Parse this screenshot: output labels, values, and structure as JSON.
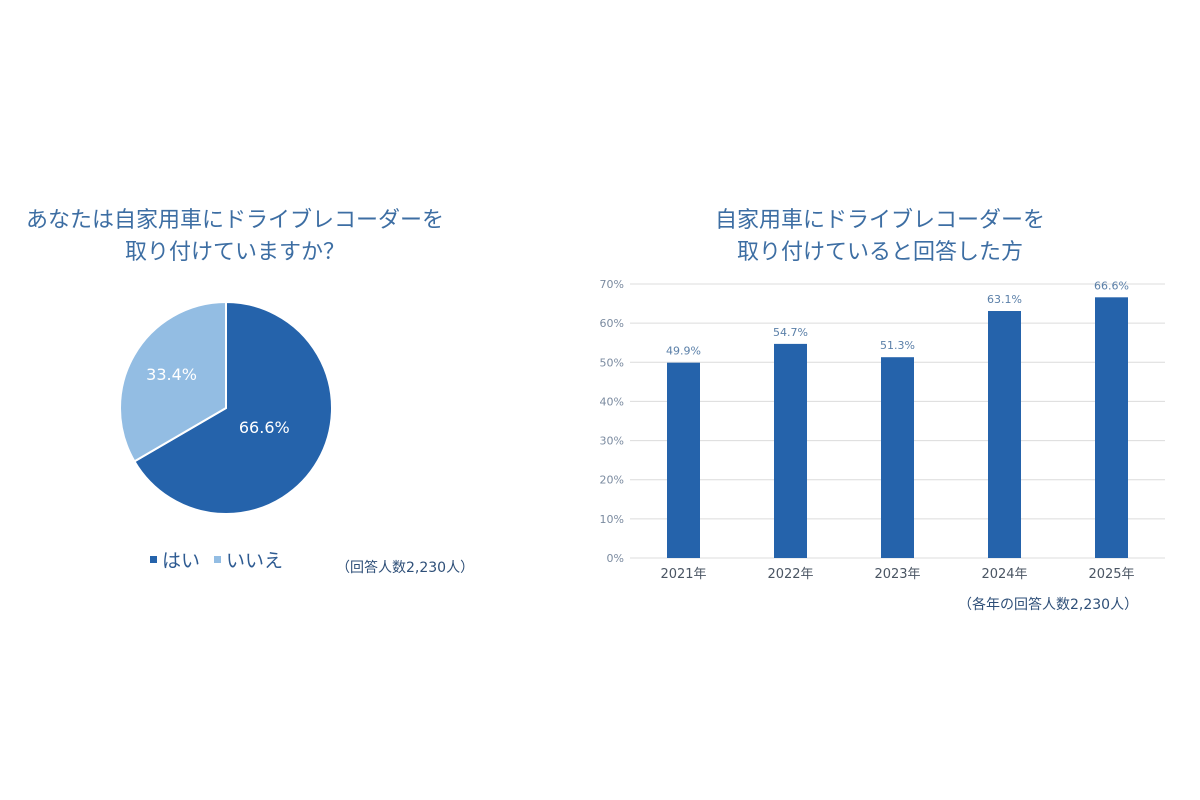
{
  "pie": {
    "title_line1": "あなたは自家用車にドライブレコーダーを",
    "title_line2": "取り付けていますか？",
    "slices": [
      {
        "label": "はい",
        "value": 66.6,
        "display": "66.6%",
        "color": "#2563ab"
      },
      {
        "label": "いいえ",
        "value": 33.4,
        "display": "33.4%",
        "color": "#93bde3"
      }
    ],
    "legend": [
      "はい",
      "いいえ"
    ],
    "note": "（回答人数2,230人）"
  },
  "bar": {
    "title_line1": "自家用車にドライブレコーダーを",
    "title_line2": "取り付けていると回答した方",
    "note": "（各年の回答人数2,230人）",
    "bar_color": "#2563ab"
  },
  "chart_data": [
    {
      "type": "pie",
      "title": "あなたは自家用車にドライブレコーダーを取り付けていますか？",
      "categories": [
        "はい",
        "いいえ"
      ],
      "values": [
        66.6,
        33.4
      ],
      "legend_position": "bottom",
      "annotation": "（回答人数2,230人）"
    },
    {
      "type": "bar",
      "title": "自家用車にドライブレコーダーを取り付けていると回答した方",
      "categories": [
        "2021年",
        "2022年",
        "2023年",
        "2024年",
        "2025年"
      ],
      "values": [
        49.9,
        54.7,
        51.3,
        63.1,
        66.6
      ],
      "value_labels": [
        "49.9%",
        "54.7%",
        "51.3%",
        "63.1%",
        "66.6%"
      ],
      "xlabel": "",
      "ylabel": "",
      "ylim": [
        0,
        70
      ],
      "yticks": [
        "0%",
        "10%",
        "20%",
        "30%",
        "40%",
        "50%",
        "60%",
        "70%"
      ],
      "grid": true,
      "annotation": "（各年の回答人数2,230人）"
    }
  ]
}
